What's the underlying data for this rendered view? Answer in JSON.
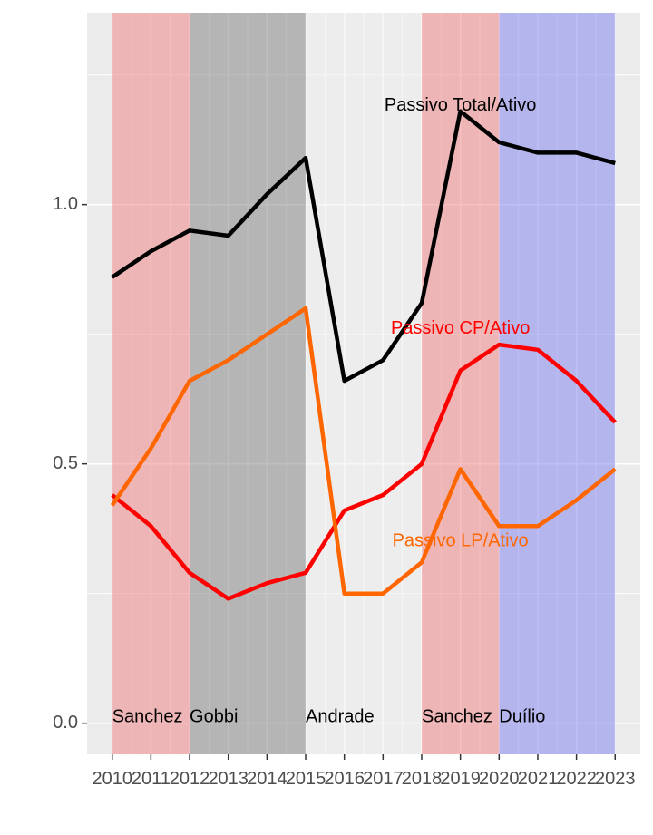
{
  "chart_data": {
    "type": "line",
    "title": "",
    "xlabel": "",
    "ylabel": "",
    "xlim": [
      2009.35,
      2023.65
    ],
    "ylim": [
      -0.06,
      1.37
    ],
    "x_ticks": [
      2010,
      2011,
      2012,
      2013,
      2014,
      2015,
      2016,
      2017,
      2018,
      2019,
      2020,
      2021,
      2022,
      2023
    ],
    "y_ticks": [
      0.0,
      0.5,
      1.0
    ],
    "y_tick_labels": [
      "0.0",
      "0.5",
      "1.0"
    ],
    "grid": true,
    "legend": "none",
    "periods": [
      {
        "label": "Sanchez",
        "start": 2010,
        "end": 2012,
        "color": "#F08080",
        "opacity": 0.5
      },
      {
        "label": "Gobbi",
        "start": 2012,
        "end": 2015,
        "color": "#808080",
        "opacity": 0.5
      },
      {
        "label": "Andrade",
        "start": 2015,
        "end": 2018,
        "color": "#F0F0F0",
        "opacity": 0.5
      },
      {
        "label": "Sanchez",
        "start": 2018,
        "end": 2020,
        "color": "#F08080",
        "opacity": 0.5
      },
      {
        "label": "Duílio",
        "start": 2020,
        "end": 2023,
        "color": "#8080F0",
        "opacity": 0.5
      }
    ],
    "series": [
      {
        "name": "Passivo Total/Ativo",
        "color": "#000000",
        "label_at": [
          2019.0,
          1.19
        ],
        "x": [
          2010,
          2011,
          2012,
          2013,
          2014,
          2015,
          2016,
          2017,
          2018,
          2019,
          2020,
          2021,
          2022,
          2023
        ],
        "values": [
          0.86,
          0.91,
          0.95,
          0.94,
          1.02,
          1.09,
          0.66,
          0.7,
          0.81,
          1.18,
          1.12,
          1.1,
          1.1,
          1.08
        ]
      },
      {
        "name": "Passivo CP/Ativo",
        "color": "#FF0000",
        "label_at": [
          2019.0,
          0.76
        ],
        "x": [
          2010,
          2011,
          2012,
          2013,
          2014,
          2015,
          2016,
          2017,
          2018,
          2019,
          2020,
          2021,
          2022,
          2023
        ],
        "values": [
          0.44,
          0.38,
          0.29,
          0.24,
          0.27,
          0.29,
          0.41,
          0.44,
          0.5,
          0.68,
          0.73,
          0.72,
          0.66,
          0.58
        ]
      },
      {
        "name": "Passivo LP/Ativo",
        "color": "#FF6600",
        "label_at": [
          2019.0,
          0.35
        ],
        "x": [
          2010,
          2011,
          2012,
          2013,
          2014,
          2015,
          2016,
          2017,
          2018,
          2019,
          2020,
          2021,
          2022,
          2023
        ],
        "values": [
          0.42,
          0.53,
          0.66,
          0.7,
          0.75,
          0.8,
          0.25,
          0.25,
          0.31,
          0.49,
          0.38,
          0.38,
          0.43,
          0.49
        ]
      }
    ]
  }
}
